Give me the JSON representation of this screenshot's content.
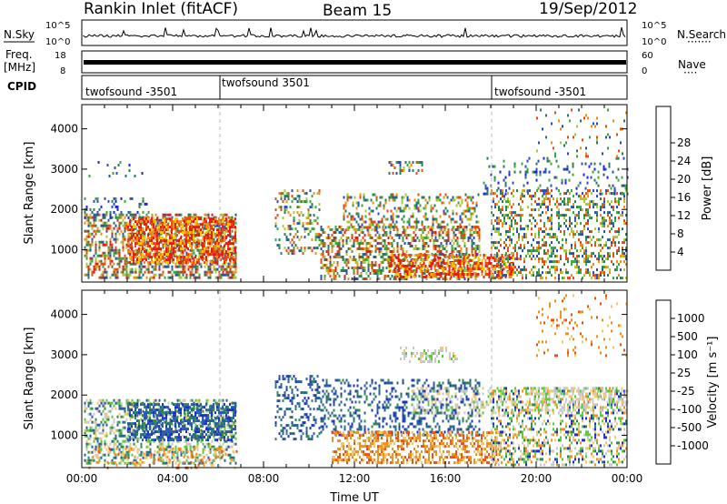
{
  "header": {
    "station": "Rankin Inlet (fitACF)",
    "beam": "Beam 15",
    "date": "19/Sep/2012"
  },
  "top_panels": {
    "nsky_label": "N.Sky",
    "nsearch_label": "N.Search",
    "nsearch_legend": "·······",
    "nsky_ticks": [
      "10^5",
      "10^0"
    ],
    "nsearch_ticks": [
      "10^5",
      "10^0"
    ],
    "freq_label_1": "Freq.",
    "freq_label_2": "[MHz]",
    "freq_ticks": [
      "18",
      "8"
    ],
    "nave_label": "Nave",
    "nave_legend": "····",
    "nave_ticks": [
      "60",
      "0"
    ],
    "cpid_label": "CPID",
    "cpid_segments": [
      {
        "label": "twofsound -3501",
        "start_h": 0
      },
      {
        "label": "twofsound 3501",
        "start_h": 6
      },
      {
        "label": "twofsound -3501",
        "start_h": 18
      }
    ]
  },
  "chart_data": [
    {
      "type": "heatmap",
      "title": "",
      "xlabel": "",
      "ylabel": "Slant Range [km]",
      "x_range_hours": [
        0,
        24
      ],
      "ylim": [
        200,
        4600
      ],
      "y_ticks": [
        "1000",
        "2000",
        "3000",
        "4000"
      ],
      "colorbar": {
        "label": "Power [dB]",
        "ticks": [
          "4",
          "8",
          "12",
          "16",
          "20",
          "24",
          "28"
        ],
        "colors": [
          "#1e20e6",
          "#2850b4",
          "#2d7a5a",
          "#3aa63c",
          "#a8c83a",
          "#f0c800",
          "#f08c14",
          "#e84a10",
          "#e01e14"
        ]
      },
      "scatter_regions": [
        {
          "h0": 0.1,
          "h1": 6.8,
          "r0": 300,
          "r1": 1900,
          "palette": "pow_hi",
          "d": 0.55
        },
        {
          "h0": 0.1,
          "h1": 3.0,
          "r0": 1800,
          "r1": 2300,
          "palette": "pow_lo",
          "d": 0.2
        },
        {
          "h0": 2.0,
          "h1": 6.8,
          "r0": 700,
          "r1": 1800,
          "palette": "pow_hot",
          "d": 0.6
        },
        {
          "h0": 0.3,
          "h1": 3.0,
          "r0": 2800,
          "r1": 3200,
          "palette": "pow_lo",
          "d": 0.12
        },
        {
          "h0": 8.5,
          "h1": 10.5,
          "r0": 900,
          "r1": 2500,
          "palette": "pow_mid",
          "d": 0.3
        },
        {
          "h0": 10.5,
          "h1": 17.5,
          "r0": 300,
          "r1": 1600,
          "palette": "pow_hi",
          "d": 0.45
        },
        {
          "h0": 11.5,
          "h1": 17.5,
          "r0": 1500,
          "r1": 2400,
          "palette": "pow_mid",
          "d": 0.3
        },
        {
          "h0": 13.5,
          "h1": 19.0,
          "r0": 300,
          "r1": 900,
          "palette": "pow_hot",
          "d": 0.55
        },
        {
          "h0": 18.0,
          "h1": 24.0,
          "r0": 300,
          "r1": 2500,
          "palette": "pow_mid",
          "d": 0.35
        },
        {
          "h0": 17.5,
          "h1": 24.0,
          "r0": 2400,
          "r1": 3300,
          "palette": "pow_lo",
          "d": 0.12
        },
        {
          "h0": 20.0,
          "h1": 24.0,
          "r0": 3300,
          "r1": 4500,
          "palette": "pow_mid",
          "d": 0.08
        },
        {
          "h0": 13.5,
          "h1": 15.0,
          "r0": 2900,
          "r1": 3200,
          "palette": "pow_mid",
          "d": 0.3
        }
      ]
    },
    {
      "type": "heatmap",
      "title": "",
      "xlabel": "Time UT",
      "ylabel": "Slant Range [km]",
      "x_range_hours": [
        0,
        24
      ],
      "ylim": [
        200,
        4600
      ],
      "x_ticks": [
        "00:00",
        "04:00",
        "08:00",
        "12:00",
        "16:00",
        "20:00",
        "00:00"
      ],
      "y_ticks": [
        "1000",
        "2000",
        "3000",
        "4000"
      ],
      "colorbar": {
        "label": "Velocity [m s⁻¹]",
        "ticks": [
          "1000",
          "500",
          "100",
          "25",
          "-25",
          "-100",
          "-500",
          "-1000"
        ],
        "colors": [
          "#1e32c8",
          "#2a5aa8",
          "#2e8a50",
          "#5cc840",
          "#c8c8c8",
          "#f0c86e",
          "#f0901e",
          "#f05010",
          "#e61414"
        ]
      },
      "scatter_regions": [
        {
          "h0": 0.1,
          "h1": 6.8,
          "r0": 300,
          "r1": 1900,
          "palette": "vel_green",
          "d": 0.45
        },
        {
          "h0": 2.0,
          "h1": 6.8,
          "r0": 900,
          "r1": 1800,
          "palette": "vel_blue",
          "d": 0.55
        },
        {
          "h0": 0.3,
          "h1": 6.8,
          "r0": 200,
          "r1": 700,
          "palette": "vel_orange",
          "d": 0.2
        },
        {
          "h0": 8.5,
          "h1": 10.5,
          "r0": 900,
          "r1": 2500,
          "palette": "vel_blue",
          "d": 0.3
        },
        {
          "h0": 10.5,
          "h1": 17.5,
          "r0": 1000,
          "r1": 2400,
          "palette": "vel_blue",
          "d": 0.3
        },
        {
          "h0": 11.0,
          "h1": 18.5,
          "r0": 300,
          "r1": 1100,
          "palette": "vel_orange",
          "d": 0.5
        },
        {
          "h0": 14.5,
          "h1": 19.0,
          "r0": 1500,
          "r1": 2200,
          "palette": "vel_grey",
          "d": 0.3
        },
        {
          "h0": 18.0,
          "h1": 24.0,
          "r0": 300,
          "r1": 2200,
          "palette": "vel_mix",
          "d": 0.38
        },
        {
          "h0": 19.5,
          "h1": 24.0,
          "r0": 1600,
          "r1": 2200,
          "palette": "vel_grey",
          "d": 0.45
        },
        {
          "h0": 14.0,
          "h1": 16.5,
          "r0": 2800,
          "r1": 3200,
          "palette": "vel_grey",
          "d": 0.3
        },
        {
          "h0": 20.0,
          "h1": 24.0,
          "r0": 3000,
          "r1": 4500,
          "palette": "vel_orange",
          "d": 0.08
        }
      ]
    }
  ],
  "palettes": {
    "pow_hi": [
      "#e01e14",
      "#e84a10",
      "#f08c14",
      "#3aa63c",
      "#2d7a5a",
      "#2850b4",
      "#a8c83a"
    ],
    "pow_hot": [
      "#e01e14",
      "#e01e14",
      "#e84a10",
      "#f08c14",
      "#f0c800"
    ],
    "pow_lo": [
      "#1e20e6",
      "#2850b4",
      "#2d7a5a",
      "#3aa63c"
    ],
    "pow_mid": [
      "#2850b4",
      "#2d7a5a",
      "#3aa63c",
      "#a8c83a",
      "#f08c14",
      "#e84a10"
    ],
    "vel_green": [
      "#2e8a50",
      "#5cc840",
      "#2a5aa8",
      "#c8c8c8",
      "#f0c86e"
    ],
    "vel_blue": [
      "#1e32c8",
      "#2a5aa8",
      "#2a5aa8",
      "#2e8a50"
    ],
    "vel_orange": [
      "#f0901e",
      "#f05010",
      "#f0c86e",
      "#f0901e"
    ],
    "vel_grey": [
      "#c8c8c8",
      "#c8c8c8",
      "#5cc840",
      "#f0c86e"
    ],
    "vel_mix": [
      "#c8c8c8",
      "#f0901e",
      "#5cc840",
      "#2e8a50",
      "#f0c86e",
      "#1e32c8"
    ]
  }
}
